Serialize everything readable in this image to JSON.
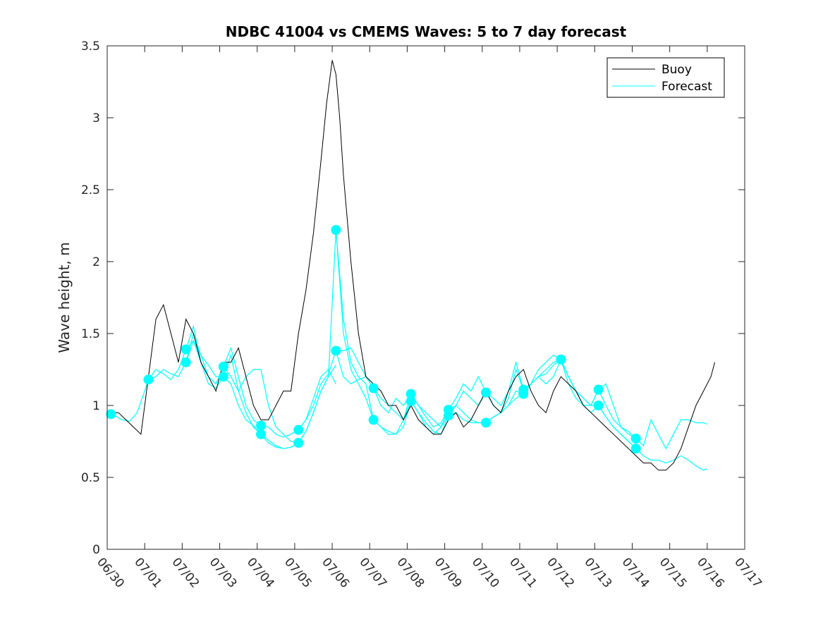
{
  "chart_data": {
    "type": "line",
    "title": "NDBC 41004 vs CMEMS Waves: 5 to 7 day forecast",
    "xlabel": "",
    "ylabel": "Wave height, m",
    "ylim": [
      0,
      3.5
    ],
    "yticks": [
      "0",
      "0.5",
      "1",
      "1.5",
      "2",
      "2.5",
      "3",
      "3.5"
    ],
    "xlim_days": [
      0,
      17
    ],
    "xticks": [
      "06/30",
      "07/01",
      "07/02",
      "07/03",
      "07/04",
      "07/05",
      "07/06",
      "07/07",
      "07/08",
      "07/09",
      "07/10",
      "07/11",
      "07/12",
      "07/13",
      "07/14",
      "07/15",
      "07/16",
      "07/17"
    ],
    "grid": false,
    "legend_position": "top-right",
    "colors": {
      "buoy": "#000000",
      "forecast": "#00ffff"
    },
    "legend": [
      "Buoy",
      "Forecast"
    ],
    "series": [
      {
        "name": "Buoy",
        "x": [
          0.0,
          0.3,
          0.5,
          0.7,
          0.9,
          1.1,
          1.3,
          1.5,
          1.7,
          1.9,
          2.1,
          2.3,
          2.5,
          2.7,
          2.9,
          3.1,
          3.3,
          3.5,
          3.7,
          3.9,
          4.1,
          4.3,
          4.5,
          4.7,
          4.9,
          5.1,
          5.3,
          5.5,
          5.7,
          5.85,
          6.0,
          6.1,
          6.2,
          6.3,
          6.5,
          6.7,
          6.9,
          7.1,
          7.3,
          7.5,
          7.7,
          7.9,
          8.1,
          8.3,
          8.5,
          8.7,
          8.9,
          9.1,
          9.3,
          9.5,
          9.7,
          9.9,
          10.1,
          10.3,
          10.5,
          10.7,
          10.9,
          11.1,
          11.3,
          11.5,
          11.7,
          11.9,
          12.1,
          12.3,
          12.5,
          12.7,
          12.9,
          13.1,
          13.3,
          13.5,
          13.7,
          13.9,
          14.1,
          14.3,
          14.5,
          14.7,
          14.9,
          15.1,
          15.3,
          15.5,
          15.7,
          15.9,
          16.1,
          16.2
        ],
        "y": [
          0.95,
          0.95,
          0.9,
          0.85,
          0.8,
          1.2,
          1.6,
          1.7,
          1.5,
          1.3,
          1.6,
          1.5,
          1.3,
          1.2,
          1.1,
          1.3,
          1.3,
          1.4,
          1.2,
          1.0,
          0.9,
          0.9,
          1.0,
          1.1,
          1.1,
          1.5,
          1.8,
          2.2,
          2.7,
          3.1,
          3.4,
          3.3,
          3.0,
          2.6,
          2.0,
          1.5,
          1.2,
          1.15,
          1.1,
          1.0,
          1.0,
          0.9,
          1.0,
          0.9,
          0.85,
          0.8,
          0.8,
          0.9,
          0.95,
          0.85,
          0.9,
          1.0,
          1.1,
          1.0,
          0.95,
          1.1,
          1.2,
          1.25,
          1.1,
          1.0,
          0.95,
          1.1,
          1.2,
          1.15,
          1.1,
          1.0,
          0.95,
          0.9,
          0.85,
          0.8,
          0.75,
          0.7,
          0.65,
          0.6,
          0.6,
          0.55,
          0.55,
          0.6,
          0.7,
          0.85,
          1.0,
          1.1,
          1.2,
          1.3
        ]
      },
      {
        "name": "Forecast",
        "x": [
          0.0,
          0.2,
          0.4,
          0.6,
          0.8,
          1.0,
          1.2,
          1.4,
          1.6,
          1.8,
          2.0,
          2.2,
          2.4,
          2.6,
          2.8,
          3.0,
          3.2,
          3.4,
          3.6,
          3.8,
          4.0,
          4.2,
          4.4,
          4.6,
          4.8,
          5.0,
          5.2,
          5.4,
          5.6,
          5.8,
          6.0,
          6.2,
          6.4,
          6.6,
          6.8,
          7.0,
          7.2,
          7.4,
          7.6,
          7.8,
          8.0,
          8.2,
          8.4,
          8.6,
          8.8,
          9.0,
          9.2,
          9.4,
          9.6,
          9.8,
          10.0,
          10.2,
          10.4,
          10.6,
          10.8,
          11.0,
          11.2,
          11.4,
          11.6,
          11.8,
          12.0,
          12.2,
          12.4,
          12.6,
          12.8,
          13.0,
          13.2,
          13.4,
          13.6,
          13.8,
          14.0,
          14.2,
          14.4,
          14.6,
          14.8,
          15.0,
          15.2,
          15.4,
          15.6,
          15.8,
          16.0
        ],
        "y": [
          0.94,
          0.93,
          0.9,
          0.89,
          0.95,
          1.1,
          1.2,
          1.22,
          1.18,
          1.25,
          1.4,
          1.35,
          1.3,
          1.22,
          1.2,
          1.25,
          1.3,
          1.3,
          1.15,
          1.0,
          0.87,
          0.82,
          0.78,
          0.74,
          0.72,
          0.74,
          0.8,
          0.95,
          1.1,
          1.2,
          1.25,
          1.2,
          1.15,
          1.12,
          1.15,
          1.1,
          1.0,
          0.95,
          0.92,
          0.9,
          1.05,
          1.0,
          0.95,
          0.9,
          0.88,
          0.95,
          1.0,
          1.05,
          1.05,
          1.0,
          1.0,
          1.05,
          1.0,
          1.0,
          1.05,
          1.1,
          1.15,
          1.2,
          1.2,
          1.25,
          1.3,
          1.22,
          1.15,
          1.1,
          1.05,
          1.0,
          0.95,
          0.9,
          0.85,
          0.8,
          0.75,
          0.7,
          0.68,
          0.67,
          0.7,
          0.75,
          0.78,
          0.82,
          0.85,
          0.87,
          0.88
        ]
      }
    ],
    "forecast_runs": [
      {
        "x": [
          0.0,
          0.2,
          0.4,
          0.6,
          0.8,
          1.0,
          1.1
        ],
        "y": [
          0.94,
          0.93,
          0.9,
          0.89,
          0.95,
          1.1,
          1.18
        ]
      },
      {
        "x": [
          1.1,
          1.3,
          1.5,
          1.7,
          1.9,
          2.1,
          2.3,
          2.5,
          2.7,
          2.9,
          3.1
        ],
        "y": [
          1.18,
          1.2,
          1.25,
          1.22,
          1.2,
          1.3,
          1.5,
          1.35,
          1.28,
          1.2,
          1.2
        ]
      },
      {
        "x": [
          1.1,
          1.3,
          1.5,
          1.7,
          1.9,
          2.1,
          2.3,
          2.5,
          2.7,
          2.9,
          3.1
        ],
        "y": [
          1.18,
          1.25,
          1.22,
          1.18,
          1.25,
          1.39,
          1.45,
          1.35,
          1.2,
          1.15,
          1.27
        ]
      },
      {
        "x": [
          2.1,
          2.3,
          2.5,
          2.7,
          2.9,
          3.1,
          3.3,
          3.5,
          3.7,
          3.9,
          4.1
        ],
        "y": [
          1.3,
          1.45,
          1.3,
          1.2,
          1.15,
          1.27,
          1.4,
          1.2,
          1.0,
          0.9,
          0.86
        ]
      },
      {
        "x": [
          2.1,
          2.3,
          2.5,
          2.7,
          2.9,
          3.1,
          3.3,
          3.5,
          3.7,
          3.9,
          4.1
        ],
        "y": [
          1.39,
          1.55,
          1.3,
          1.15,
          1.12,
          1.2,
          1.35,
          1.1,
          0.95,
          0.85,
          0.8
        ]
      },
      {
        "x": [
          3.1,
          3.3,
          3.5,
          3.7,
          3.9,
          4.1,
          4.3,
          4.5,
          4.7,
          4.9,
          5.1
        ],
        "y": [
          1.27,
          1.2,
          1.1,
          1.2,
          1.25,
          1.25,
          1.0,
          0.85,
          0.8,
          0.75,
          0.74
        ]
      },
      {
        "x": [
          3.1,
          3.3,
          3.5,
          3.7,
          3.9,
          4.1,
          4.3,
          4.5,
          4.7,
          4.9,
          5.1
        ],
        "y": [
          1.2,
          1.15,
          1.0,
          0.9,
          0.86,
          0.8,
          0.74,
          0.71,
          0.7,
          0.71,
          0.74
        ]
      },
      {
        "x": [
          4.1,
          4.3,
          4.5,
          4.7,
          4.9,
          5.1,
          5.3,
          5.5,
          5.7,
          5.9,
          6.1
        ],
        "y": [
          0.86,
          0.85,
          0.8,
          0.78,
          0.8,
          0.83,
          0.9,
          1.05,
          1.2,
          1.25,
          1.15
        ]
      },
      {
        "x": [
          4.1,
          4.3,
          4.5,
          4.7,
          4.9,
          5.1,
          5.3,
          5.5,
          5.7,
          5.9,
          6.1
        ],
        "y": [
          0.8,
          0.76,
          0.72,
          0.7,
          0.71,
          0.74,
          0.82,
          0.95,
          1.1,
          1.2,
          1.28
        ]
      },
      {
        "x": [
          5.1,
          5.3,
          5.5,
          5.7,
          5.9,
          6.1,
          6.3,
          6.5,
          6.7,
          6.9,
          7.1
        ],
        "y": [
          0.83,
          0.9,
          1.0,
          1.15,
          1.22,
          1.38,
          1.38,
          1.4,
          1.3,
          1.2,
          1.12
        ]
      },
      {
        "x": [
          5.1,
          5.3,
          5.5,
          5.7,
          5.9,
          6.1,
          6.3,
          6.5,
          6.7,
          6.9,
          7.1
        ],
        "y": [
          0.74,
          0.82,
          0.95,
          1.1,
          1.2,
          2.22,
          1.6,
          1.3,
          1.2,
          1.15,
          0.9
        ]
      },
      {
        "x": [
          6.1,
          6.3,
          6.5,
          6.7,
          6.9,
          7.1,
          7.3,
          7.5,
          7.7,
          7.9,
          8.1
        ],
        "y": [
          1.38,
          1.2,
          1.15,
          1.18,
          1.2,
          1.12,
          1.05,
          1.0,
          0.95,
          0.9,
          1.08
        ]
      },
      {
        "x": [
          6.1,
          6.3,
          6.5,
          6.7,
          6.9,
          7.1,
          7.3,
          7.5,
          7.7,
          7.9,
          8.1
        ],
        "y": [
          2.22,
          1.5,
          1.25,
          1.15,
          1.05,
          0.9,
          0.85,
          0.8,
          0.8,
          0.85,
          1.03
        ]
      },
      {
        "x": [
          7.1,
          7.3,
          7.5,
          7.7,
          7.9,
          8.1,
          8.3,
          8.5,
          8.7,
          8.9,
          9.1
        ],
        "y": [
          1.12,
          1.0,
          0.95,
          1.05,
          1.0,
          1.08,
          1.0,
          0.95,
          0.9,
          0.85,
          0.97
        ]
      },
      {
        "x": [
          7.1,
          7.3,
          7.5,
          7.7,
          7.9,
          8.1,
          8.3,
          8.5,
          8.7,
          8.9,
          9.1
        ],
        "y": [
          0.9,
          0.85,
          0.82,
          0.8,
          0.9,
          1.03,
          0.95,
          0.88,
          0.82,
          0.8,
          0.93
        ]
      },
      {
        "x": [
          8.1,
          8.3,
          8.5,
          8.7,
          8.9,
          9.1,
          9.3,
          9.5,
          9.7,
          9.9,
          10.1
        ],
        "y": [
          1.08,
          1.0,
          0.92,
          0.85,
          0.88,
          0.97,
          1.05,
          1.15,
          1.1,
          1.2,
          1.09
        ]
      },
      {
        "x": [
          8.1,
          8.3,
          8.5,
          8.7,
          8.9,
          9.1,
          9.3,
          9.5,
          9.7,
          9.9,
          10.1
        ],
        "y": [
          1.03,
          0.95,
          0.85,
          0.8,
          0.85,
          0.93,
          1.0,
          0.95,
          0.9,
          0.88,
          0.88
        ]
      },
      {
        "x": [
          9.1,
          9.3,
          9.5,
          9.7,
          9.9,
          10.1,
          10.3,
          10.5,
          10.7,
          10.9,
          11.1
        ],
        "y": [
          0.97,
          1.0,
          1.1,
          1.05,
          1.0,
          1.09,
          1.0,
          0.95,
          1.05,
          1.25,
          1.11
        ]
      },
      {
        "x": [
          9.1,
          9.3,
          9.5,
          9.7,
          9.9,
          10.1,
          10.3,
          10.5,
          10.7,
          10.9,
          11.1
        ],
        "y": [
          0.93,
          0.95,
          0.9,
          0.88,
          0.88,
          0.88,
          0.92,
          0.95,
          1.0,
          1.1,
          1.08
        ]
      },
      {
        "x": [
          10.1,
          10.3,
          10.5,
          10.7,
          10.9,
          11.1,
          11.3,
          11.5,
          11.7,
          11.9,
          12.1
        ],
        "y": [
          1.09,
          1.05,
          1.0,
          1.1,
          1.3,
          1.11,
          1.15,
          1.2,
          1.25,
          1.3,
          1.32
        ]
      },
      {
        "x": [
          10.1,
          10.3,
          10.5,
          10.7,
          10.9,
          11.1,
          11.3,
          11.5,
          11.7,
          11.9,
          12.1
        ],
        "y": [
          0.88,
          0.92,
          0.95,
          1.0,
          1.05,
          1.08,
          1.15,
          1.2,
          1.15,
          1.2,
          1.32
        ]
      },
      {
        "x": [
          11.1,
          11.3,
          11.5,
          11.7,
          11.9,
          12.1,
          12.3,
          12.5,
          12.7,
          12.9,
          13.1
        ],
        "y": [
          1.11,
          1.15,
          1.25,
          1.3,
          1.35,
          1.32,
          1.2,
          1.1,
          1.0,
          1.0,
          1.11
        ]
      },
      {
        "x": [
          11.1,
          11.3,
          11.5,
          11.7,
          11.9,
          12.1,
          12.3,
          12.5,
          12.7,
          12.9,
          13.1
        ],
        "y": [
          1.08,
          1.15,
          1.2,
          1.22,
          1.28,
          1.32,
          1.2,
          1.1,
          1.05,
          1.0,
          1.0
        ]
      },
      {
        "x": [
          12.1,
          12.3,
          12.5,
          12.7,
          12.9,
          13.1,
          13.3,
          13.5,
          13.7,
          13.9,
          14.1
        ],
        "y": [
          1.32,
          1.2,
          1.1,
          1.05,
          1.0,
          1.11,
          1.15,
          1.0,
          0.85,
          0.8,
          0.77
        ]
      },
      {
        "x": [
          12.1,
          12.3,
          12.5,
          12.7,
          12.9,
          13.1,
          13.3,
          13.5,
          13.7,
          13.9,
          14.1
        ],
        "y": [
          1.32,
          1.15,
          1.05,
          1.0,
          0.95,
          1.0,
          0.92,
          0.85,
          0.8,
          0.75,
          0.7
        ]
      },
      {
        "x": [
          13.1,
          13.3,
          13.5,
          13.7,
          13.9,
          14.1,
          14.3,
          14.5,
          14.7,
          14.9,
          15.1,
          15.3,
          15.5,
          15.7,
          15.9,
          16.0
        ],
        "y": [
          1.11,
          1.0,
          0.9,
          0.85,
          0.82,
          0.77,
          0.72,
          0.9,
          0.8,
          0.7,
          0.8,
          0.9,
          0.9,
          0.88,
          0.88,
          0.87
        ]
      },
      {
        "x": [
          13.1,
          13.3,
          13.5,
          13.7,
          13.9,
          14.1,
          14.3,
          14.5,
          14.7,
          14.9,
          15.1,
          15.3,
          15.5,
          15.7,
          15.9,
          16.0
        ],
        "y": [
          1.0,
          0.92,
          0.85,
          0.8,
          0.75,
          0.7,
          0.65,
          0.62,
          0.62,
          0.6,
          0.62,
          0.65,
          0.62,
          0.58,
          0.55,
          0.56
        ]
      }
    ],
    "forecast_markers": {
      "x": [
        0.1,
        1.1,
        2.1,
        2.1,
        3.1,
        3.1,
        4.1,
        4.1,
        5.1,
        5.1,
        6.1,
        6.1,
        7.1,
        7.1,
        8.1,
        8.1,
        9.1,
        9.1,
        10.1,
        10.1,
        11.1,
        11.1,
        12.1,
        13.1,
        13.1,
        14.1,
        14.1
      ],
      "y": [
        0.94,
        1.18,
        1.39,
        1.3,
        1.27,
        1.2,
        0.86,
        0.8,
        0.83,
        0.74,
        2.22,
        1.38,
        1.12,
        0.9,
        1.08,
        1.03,
        0.97,
        0.93,
        1.09,
        0.88,
        1.11,
        1.08,
        1.32,
        1.11,
        1.0,
        0.77,
        0.7
      ]
    }
  }
}
